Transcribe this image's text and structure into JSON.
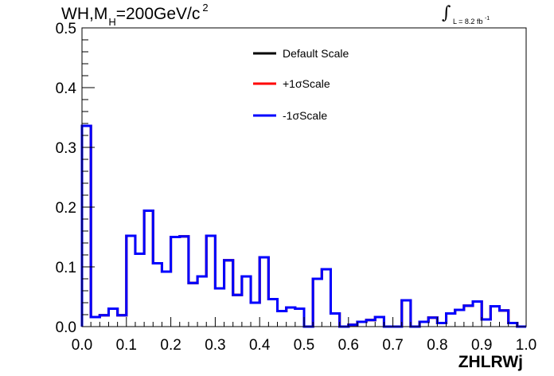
{
  "title": {
    "main": "WH,M",
    "sub": "H",
    "rest": "=200GeV/c",
    "sup": "2"
  },
  "luminosity": {
    "integral": "∫",
    "text": "L = 8.2 fb",
    "exponent": "-1"
  },
  "colors": {
    "default": "#000000",
    "plus": "#ff0000",
    "minus": "#0000ff",
    "axis": "#000000"
  },
  "chart_data": {
    "type": "line",
    "style": "step-histogram",
    "xlabel": "ZHLRWj",
    "ylabel": "",
    "xlim": [
      0,
      1
    ],
    "ylim": [
      0,
      0.5
    ],
    "x_ticks": [
      "0.0",
      "0.1",
      "0.2",
      "0.3",
      "0.4",
      "0.5",
      "0.6",
      "0.7",
      "0.8",
      "0.9",
      "1.0"
    ],
    "y_ticks": [
      "0.0",
      "0.1",
      "0.2",
      "0.3",
      "0.4",
      "0.5"
    ],
    "bin_edges_start": 0,
    "bin_width": 0.02,
    "legend_position": "top-center",
    "series": [
      {
        "name": "Default Scale",
        "color": "#000000",
        "values": [
          0.336,
          0.016,
          0.019,
          0.03,
          0.019,
          0.152,
          0.122,
          0.194,
          0.106,
          0.092,
          0.15,
          0.151,
          0.073,
          0.084,
          0.152,
          0.064,
          0.111,
          0.053,
          0.084,
          0.04,
          0.116,
          0.046,
          0.026,
          0.032,
          0.03,
          0.0,
          0.08,
          0.096,
          0.022,
          0.0,
          0.003,
          0.008,
          0.011,
          0.016,
          0.0,
          0.0,
          0.044,
          0.0,
          0.008,
          0.015,
          0.006,
          0.022,
          0.028,
          0.035,
          0.042,
          0.012,
          0.034,
          0.027,
          0.006,
          0.0
        ]
      },
      {
        "name": "+1σScale",
        "color": "#ff0000",
        "values": [
          0.336,
          0.016,
          0.019,
          0.03,
          0.019,
          0.152,
          0.122,
          0.194,
          0.106,
          0.092,
          0.15,
          0.151,
          0.073,
          0.084,
          0.152,
          0.064,
          0.111,
          0.053,
          0.084,
          0.04,
          0.116,
          0.046,
          0.026,
          0.032,
          0.03,
          0.0,
          0.08,
          0.096,
          0.022,
          0.0,
          0.003,
          0.008,
          0.011,
          0.016,
          0.0,
          0.0,
          0.044,
          0.0,
          0.008,
          0.015,
          0.006,
          0.022,
          0.028,
          0.035,
          0.042,
          0.012,
          0.034,
          0.027,
          0.006,
          0.0
        ]
      },
      {
        "name": "-1σScale",
        "color": "#0000ff",
        "values": [
          0.336,
          0.016,
          0.019,
          0.03,
          0.019,
          0.152,
          0.122,
          0.194,
          0.106,
          0.092,
          0.15,
          0.151,
          0.073,
          0.084,
          0.152,
          0.064,
          0.111,
          0.053,
          0.084,
          0.04,
          0.116,
          0.046,
          0.026,
          0.032,
          0.03,
          0.0,
          0.08,
          0.096,
          0.022,
          0.0,
          0.003,
          0.008,
          0.011,
          0.016,
          0.0,
          0.0,
          0.044,
          0.0,
          0.008,
          0.015,
          0.006,
          0.022,
          0.028,
          0.035,
          0.042,
          0.012,
          0.034,
          0.027,
          0.006,
          0.0
        ]
      }
    ]
  }
}
